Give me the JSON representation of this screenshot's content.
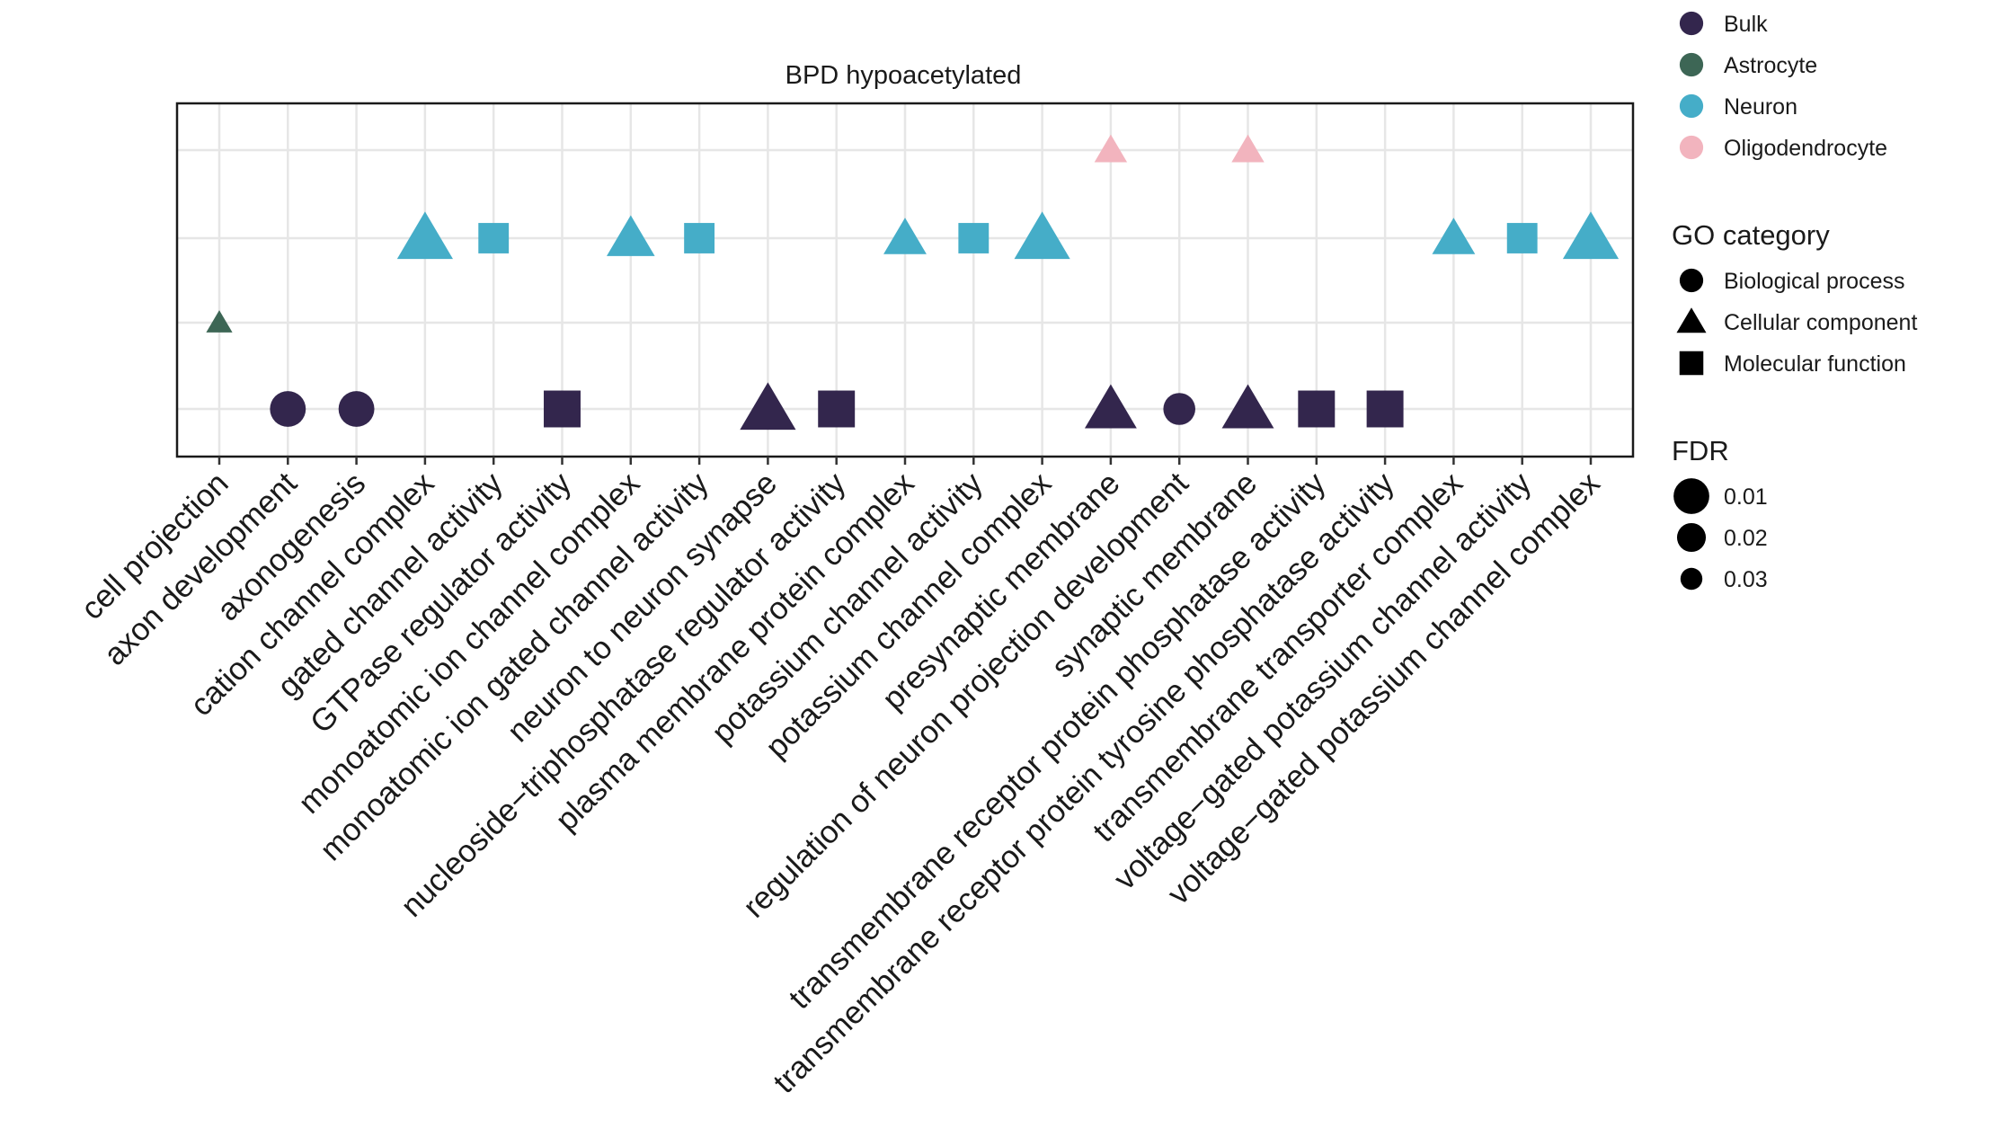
{
  "chart_data": {
    "type": "scatter",
    "title": "BPD hypoacetylated",
    "categories": [
      "cell projection",
      "axon development",
      "axonogenesis",
      "cation channel complex",
      "gated channel activity",
      "GTPase regulator activity",
      "monoatomic ion channel complex",
      "monoatomic ion gated channel activity",
      "neuron to neuron synapse",
      "nucleoside−triphosphatase regulator activity",
      "plasma membrane protein complex",
      "potassium channel activity",
      "potassium channel complex",
      "presynaptic membrane",
      "regulation of neuron projection development",
      "synaptic membrane",
      "transmembrane receptor protein phosphatase activity",
      "transmembrane receptor protein tyrosine phosphatase activity",
      "transmembrane transporter complex",
      "voltage−gated potassium channel activity",
      "voltage−gated potassium channel complex"
    ],
    "rows": [
      "Bulk",
      "Astrocyte",
      "Neuron",
      "Oligodendrocyte"
    ],
    "points": [
      {
        "category": 0,
        "cell_type": "Astrocyte",
        "go_category": "Cellular component",
        "fdr": 0.035
      },
      {
        "category": 1,
        "cell_type": "Bulk",
        "go_category": "Biological process",
        "fdr": 0.018
      },
      {
        "category": 2,
        "cell_type": "Bulk",
        "go_category": "Biological process",
        "fdr": 0.018
      },
      {
        "category": 3,
        "cell_type": "Neuron",
        "go_category": "Cellular component",
        "fdr": 0.012
      },
      {
        "category": 4,
        "cell_type": "Neuron",
        "go_category": "Molecular function",
        "fdr": 0.022
      },
      {
        "category": 5,
        "cell_type": "Bulk",
        "go_category": "Molecular function",
        "fdr": 0.015
      },
      {
        "category": 6,
        "cell_type": "Neuron",
        "go_category": "Cellular component",
        "fdr": 0.018
      },
      {
        "category": 7,
        "cell_type": "Neuron",
        "go_category": "Molecular function",
        "fdr": 0.022
      },
      {
        "category": 8,
        "cell_type": "Bulk",
        "go_category": "Cellular component",
        "fdr": 0.012
      },
      {
        "category": 9,
        "cell_type": "Bulk",
        "go_category": "Molecular function",
        "fdr": 0.015
      },
      {
        "category": 10,
        "cell_type": "Neuron",
        "go_category": "Cellular component",
        "fdr": 0.022
      },
      {
        "category": 11,
        "cell_type": "Neuron",
        "go_category": "Molecular function",
        "fdr": 0.022
      },
      {
        "category": 12,
        "cell_type": "Neuron",
        "go_category": "Cellular component",
        "fdr": 0.012
      },
      {
        "category": 13,
        "cell_type": "Oligodendrocyte",
        "go_category": "Cellular component",
        "fdr": 0.03
      },
      {
        "category": 13,
        "cell_type": "Bulk",
        "go_category": "Cellular component",
        "fdr": 0.015
      },
      {
        "category": 14,
        "cell_type": "Bulk",
        "go_category": "Biological process",
        "fdr": 0.022
      },
      {
        "category": 15,
        "cell_type": "Oligodendrocyte",
        "go_category": "Cellular component",
        "fdr": 0.03
      },
      {
        "category": 15,
        "cell_type": "Bulk",
        "go_category": "Cellular component",
        "fdr": 0.015
      },
      {
        "category": 16,
        "cell_type": "Bulk",
        "go_category": "Molecular function",
        "fdr": 0.015
      },
      {
        "category": 17,
        "cell_type": "Bulk",
        "go_category": "Molecular function",
        "fdr": 0.015
      },
      {
        "category": 18,
        "cell_type": "Neuron",
        "go_category": "Cellular component",
        "fdr": 0.022
      },
      {
        "category": 19,
        "cell_type": "Neuron",
        "go_category": "Molecular function",
        "fdr": 0.022
      },
      {
        "category": 20,
        "cell_type": "Neuron",
        "go_category": "Cellular component",
        "fdr": 0.012
      }
    ],
    "colors": {
      "Bulk": "#33264d",
      "Astrocyte": "#3d6655",
      "Neuron": "#45adc8",
      "Oligodendrocyte": "#f2b4be"
    },
    "grid": true,
    "legend_position": "right",
    "legends": [
      {
        "title": "",
        "entries": [
          {
            "label": "Bulk",
            "shape": "circle",
            "color": "#33264d"
          },
          {
            "label": "Astrocyte",
            "shape": "circle",
            "color": "#3d6655"
          },
          {
            "label": "Neuron",
            "shape": "circle",
            "color": "#45adc8"
          },
          {
            "label": "Oligodendrocyte",
            "shape": "circle",
            "color": "#f2b4be"
          }
        ]
      },
      {
        "title": "GO category",
        "entries": [
          {
            "label": "Biological process",
            "shape": "circle",
            "color": "#000000"
          },
          {
            "label": "Cellular component",
            "shape": "triangle",
            "color": "#000000"
          },
          {
            "label": "Molecular function",
            "shape": "square",
            "color": "#000000"
          }
        ]
      },
      {
        "title": "FDR",
        "entries": [
          {
            "label": "0.01",
            "shape": "circle",
            "color": "#000000",
            "fdr": 0.01
          },
          {
            "label": "0.02",
            "shape": "circle",
            "color": "#000000",
            "fdr": 0.02
          },
          {
            "label": "0.03",
            "shape": "circle",
            "color": "#000000",
            "fdr": 0.03
          }
        ]
      }
    ]
  }
}
